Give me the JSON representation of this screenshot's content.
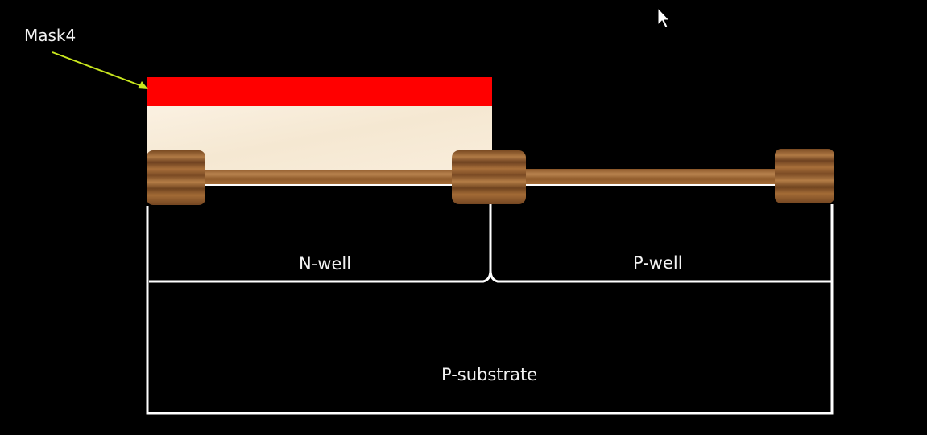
{
  "labels": {
    "mask": "Mask4",
    "n_well": "N-well",
    "p_well": "P-well",
    "p_substrate": "P-substrate"
  },
  "colors": {
    "background": "#000000",
    "mask": "#ff0000",
    "photoresist": "#f7ecd9",
    "oxide_wood": "#9a6330",
    "outline": "#ffffff",
    "arrow": "#c8e61e",
    "text": "#f2f2f2"
  },
  "icons": {
    "cursor": "mouse-pointer-icon",
    "pointer_arrow": "arrow-icon"
  }
}
